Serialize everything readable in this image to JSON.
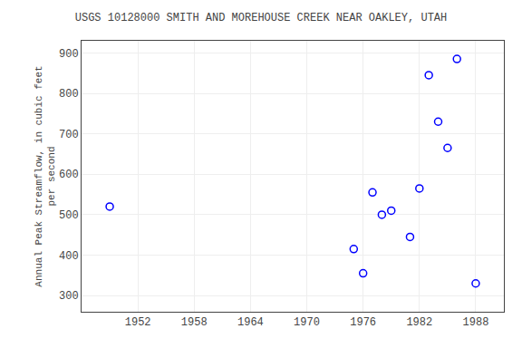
{
  "chart_data": {
    "type": "scatter",
    "title": "USGS 10128000 SMITH AND MOREHOUSE CREEK NEAR OAKLEY, UTAH",
    "ylabel": "Annual Peak Streamflow, in cubic feet\nper second",
    "x": [
      1949,
      1975,
      1976,
      1978,
      1979,
      1977,
      1981,
      1982,
      1983,
      1984,
      1985,
      1986,
      1988
    ],
    "values": [
      520,
      415,
      355,
      500,
      510,
      555,
      445,
      565,
      845,
      730,
      665,
      885,
      330
    ],
    "color": "blue",
    "marker": "open circle",
    "xlim": [
      1946,
      1991
    ],
    "ylim": [
      260,
      930
    ],
    "xticks": [
      1952,
      1958,
      1964,
      1970,
      1976,
      1982,
      1988
    ],
    "yticks": [
      300,
      400,
      500,
      600,
      700,
      800,
      900
    ],
    "grid": true
  }
}
